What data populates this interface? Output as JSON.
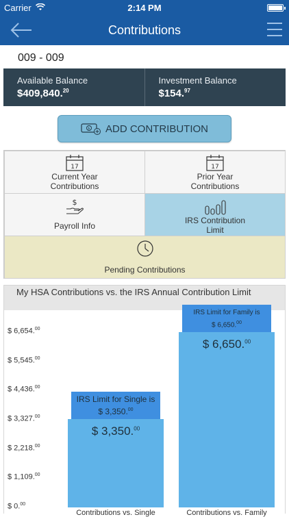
{
  "status_bar": {
    "carrier": "Carrier",
    "time": "2:14 PM"
  },
  "nav": {
    "title": "Contributions",
    "back_icon": "arrow-left-icon",
    "menu_icon": "hamburger-icon"
  },
  "account": {
    "number": "009 - 009"
  },
  "balances": {
    "available_label": "Available Balance",
    "available_value": "$409,840.",
    "available_cents": "20",
    "investment_label": "Investment Balance",
    "investment_value": "$154.",
    "investment_cents": "97"
  },
  "add_button": {
    "label": "ADD CONTRIBUTION",
    "icon": "money-add-icon"
  },
  "tiles": {
    "current_year": {
      "line1": "Current Year",
      "line2": "Contributions",
      "icon": "calendar-icon",
      "day": "17"
    },
    "prior_year": {
      "line1": "Prior Year",
      "line2": "Contributions",
      "icon": "calendar-icon",
      "day": "17"
    },
    "payroll": {
      "label": "Payroll Info",
      "icon": "hand-money-icon"
    },
    "irs_limit": {
      "line1": "IRS Contribution",
      "line2": "Limit",
      "icon": "bar-chart-icon"
    },
    "pending": {
      "label": "Pending Contributions",
      "icon": "clock-icon"
    }
  },
  "colors": {
    "nav": "#1a5ba3",
    "balance_bg": "#2f4351",
    "selected_tile": "#a8d3e6",
    "pending_tile": "#ebe8c5",
    "bar": "#5fb3e8",
    "bar_label": "#3f8fe0"
  },
  "chart_data": {
    "type": "bar",
    "title": "My HSA Contributions vs. the IRS Annual Contribution Limit",
    "categories": [
      "Contributions vs. Single",
      "Contributions vs. Family"
    ],
    "values": [
      3350,
      6650
    ],
    "value_labels": [
      {
        "main": "$ 3,350.",
        "cents": "00"
      },
      {
        "main": "$ 6,650.",
        "cents": "00"
      }
    ],
    "limit_labels": [
      {
        "line1": "IRS Limit for Single is",
        "line2": "$ 3,350.",
        "cents": "00"
      },
      {
        "line1": "IRS Limit for Family is",
        "line2": "$ 6,650.",
        "cents": "00"
      }
    ],
    "ylim": [
      0,
      6654
    ],
    "yticks": [
      {
        "value": 0,
        "main": "$ 0.",
        "cents": "00"
      },
      {
        "value": 1109,
        "main": "$ 1,109.",
        "cents": "00"
      },
      {
        "value": 2218,
        "main": "$ 2,218.",
        "cents": "00"
      },
      {
        "value": 3327,
        "main": "$ 3,327.",
        "cents": "00"
      },
      {
        "value": 4436,
        "main": "$ 4,436.",
        "cents": "00"
      },
      {
        "value": 5545,
        "main": "$ 5,545.",
        "cents": "00"
      },
      {
        "value": 6654,
        "main": "$ 6,654.",
        "cents": "00"
      }
    ],
    "grid": false
  }
}
